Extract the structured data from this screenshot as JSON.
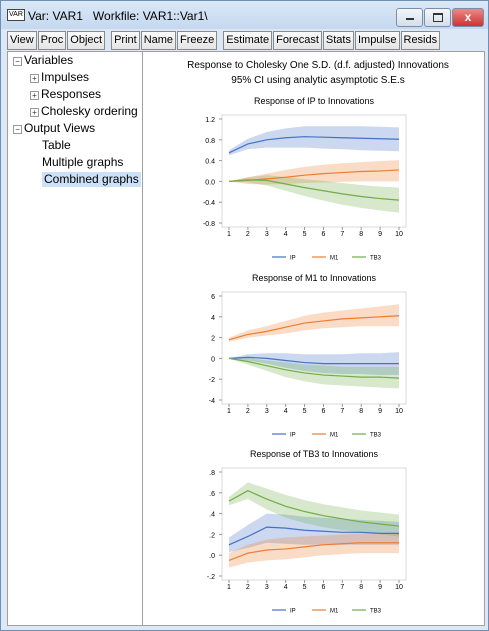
{
  "window": {
    "icon_label": "VAR",
    "title": "Var: VAR1   Workfile: VAR1::Var1\\"
  },
  "toolbar": [
    "View",
    "Proc",
    "Object",
    "Print",
    "Name",
    "Freeze",
    "Estimate",
    "Forecast",
    "Stats",
    "Impulse",
    "Resids"
  ],
  "tree": [
    {
      "label": "Variables",
      "children": [
        "Impulses",
        "Responses",
        "Cholesky ordering"
      ]
    },
    {
      "label": "Output Views",
      "children": [
        "Table",
        "Multiple graphs",
        "Combined graphs"
      ]
    }
  ],
  "figure": {
    "title": "Response to Cholesky One S.D. (d.f. adjusted) Innovations",
    "subtitle": "95% CI using analytic asymptotic S.E.s"
  },
  "chart_data": [
    {
      "type": "line",
      "title": "Response of IP to Innovations",
      "x": [
        1,
        2,
        3,
        4,
        5,
        6,
        7,
        8,
        9,
        10
      ],
      "xlim": [
        1,
        10
      ],
      "xticks": [
        1,
        2,
        3,
        4,
        5,
        6,
        7,
        8,
        9,
        10
      ],
      "ylim": [
        -0.8,
        1.2
      ],
      "yticks": [
        -0.8,
        -0.4,
        {
          "value": 0,
          "label": "0.0"
        },
        0.4,
        0.8,
        1.2
      ],
      "series": [
        {
          "name": "IP",
          "color": "#4472c4",
          "values": [
            0.55,
            0.72,
            0.8,
            0.84,
            0.86,
            0.85,
            0.84,
            0.83,
            0.82,
            0.81
          ],
          "lower": [
            0.5,
            0.62,
            0.65,
            0.65,
            0.65,
            0.63,
            0.62,
            0.6,
            0.59,
            0.58
          ],
          "upper": [
            0.6,
            0.82,
            0.95,
            1.02,
            1.06,
            1.06,
            1.06,
            1.06,
            1.05,
            1.04
          ]
        },
        {
          "name": "M1",
          "color": "#ed7d31",
          "values": [
            0,
            0.02,
            0.05,
            0.08,
            0.12,
            0.15,
            0.17,
            0.19,
            0.2,
            0.22
          ],
          "lower": [
            0,
            -0.05,
            -0.06,
            -0.05,
            -0.03,
            -0.02,
            -0.01,
            0,
            0,
            0
          ],
          "upper": [
            0,
            0.08,
            0.15,
            0.22,
            0.28,
            0.32,
            0.35,
            0.37,
            0.39,
            0.41
          ]
        },
        {
          "name": "TB3",
          "color": "#70ad47",
          "values": [
            0,
            0.03,
            0.02,
            -0.05,
            -0.12,
            -0.18,
            -0.24,
            -0.29,
            -0.33,
            -0.36
          ],
          "lower": [
            0,
            -0.02,
            -0.08,
            -0.18,
            -0.28,
            -0.37,
            -0.45,
            -0.51,
            -0.56,
            -0.6
          ],
          "upper": [
            0,
            0.08,
            0.12,
            0.08,
            0.04,
            0.01,
            -0.03,
            -0.07,
            -0.1,
            -0.12
          ]
        }
      ]
    },
    {
      "type": "line",
      "title": "Response of M1 to Innovations",
      "x": [
        1,
        2,
        3,
        4,
        5,
        6,
        7,
        8,
        9,
        10
      ],
      "xlim": [
        1,
        10
      ],
      "xticks": [
        1,
        2,
        3,
        4,
        5,
        6,
        7,
        8,
        9,
        10
      ],
      "ylim": [
        -4,
        6
      ],
      "yticks": [
        -4,
        -2,
        0,
        2,
        4,
        6
      ],
      "series": [
        {
          "name": "IP",
          "color": "#4472c4",
          "values": [
            0,
            0.1,
            0,
            -0.2,
            -0.4,
            -0.5,
            -0.5,
            -0.5,
            -0.5,
            -0.5
          ],
          "lower": [
            0,
            -0.2,
            -0.5,
            -0.9,
            -1.2,
            -1.4,
            -1.5,
            -1.5,
            -1.6,
            -1.6
          ],
          "upper": [
            0,
            0.4,
            0.5,
            0.5,
            0.4,
            0.4,
            0.4,
            0.5,
            0.5,
            0.6
          ]
        },
        {
          "name": "M1",
          "color": "#ed7d31",
          "values": [
            1.8,
            2.3,
            2.6,
            3.0,
            3.4,
            3.6,
            3.8,
            3.9,
            4.0,
            4.1
          ],
          "lower": [
            1.6,
            2.0,
            2.2,
            2.4,
            2.7,
            2.9,
            3.0,
            3.1,
            3.1,
            3.1
          ],
          "upper": [
            2.0,
            2.7,
            3.1,
            3.6,
            4.1,
            4.4,
            4.6,
            4.8,
            5.0,
            5.2
          ]
        },
        {
          "name": "TB3",
          "color": "#70ad47",
          "values": [
            0,
            -0.3,
            -0.7,
            -1.1,
            -1.4,
            -1.6,
            -1.7,
            -1.8,
            -1.8,
            -1.9
          ],
          "lower": [
            0,
            -0.6,
            -1.2,
            -1.8,
            -2.2,
            -2.5,
            -2.6,
            -2.7,
            -2.8,
            -2.9
          ],
          "upper": [
            0,
            0,
            -0.2,
            -0.4,
            -0.6,
            -0.7,
            -0.8,
            -0.8,
            -0.8,
            -0.8
          ]
        }
      ]
    },
    {
      "type": "line",
      "title": "Response of TB3 to Innovations",
      "x": [
        1,
        2,
        3,
        4,
        5,
        6,
        7,
        8,
        9,
        10
      ],
      "xlim": [
        1,
        10
      ],
      "xticks": [
        1,
        2,
        3,
        4,
        5,
        6,
        7,
        8,
        9,
        10
      ],
      "ylim": [
        -0.2,
        0.8
      ],
      "yticks": [
        {
          "value": -0.2,
          "label": "-.2"
        },
        {
          "value": 0,
          "label": ".0"
        },
        {
          "value": 0.2,
          "label": ".2"
        },
        {
          "value": 0.4,
          "label": ".4"
        },
        {
          "value": 0.6,
          "label": ".6"
        },
        {
          "value": 0.8,
          "label": ".8"
        }
      ],
      "series": [
        {
          "name": "IP",
          "color": "#4472c4",
          "values": [
            0.1,
            0.18,
            0.27,
            0.26,
            0.24,
            0.23,
            0.22,
            0.22,
            0.21,
            0.21
          ],
          "lower": [
            0.03,
            0.07,
            0.12,
            0.11,
            0.1,
            0.1,
            0.1,
            0.1,
            0.1,
            0.1
          ],
          "upper": [
            0.17,
            0.29,
            0.4,
            0.39,
            0.37,
            0.36,
            0.35,
            0.34,
            0.33,
            0.32
          ]
        },
        {
          "name": "M1",
          "color": "#ed7d31",
          "values": [
            -0.05,
            0.02,
            0.05,
            0.06,
            0.08,
            0.1,
            0.11,
            0.12,
            0.12,
            0.12
          ],
          "lower": [
            -0.12,
            -0.07,
            -0.05,
            -0.04,
            -0.02,
            0,
            0.01,
            0.02,
            0.02,
            0.02
          ],
          "upper": [
            0.02,
            0.1,
            0.15,
            0.17,
            0.18,
            0.19,
            0.2,
            0.21,
            0.21,
            0.21
          ]
        },
        {
          "name": "TB3",
          "color": "#70ad47",
          "values": [
            0.52,
            0.62,
            0.54,
            0.47,
            0.42,
            0.38,
            0.35,
            0.32,
            0.3,
            0.28
          ],
          "lower": [
            0.48,
            0.54,
            0.44,
            0.36,
            0.31,
            0.27,
            0.24,
            0.22,
            0.2,
            0.18
          ],
          "upper": [
            0.56,
            0.7,
            0.64,
            0.58,
            0.53,
            0.49,
            0.46,
            0.43,
            0.41,
            0.39
          ]
        }
      ]
    }
  ]
}
